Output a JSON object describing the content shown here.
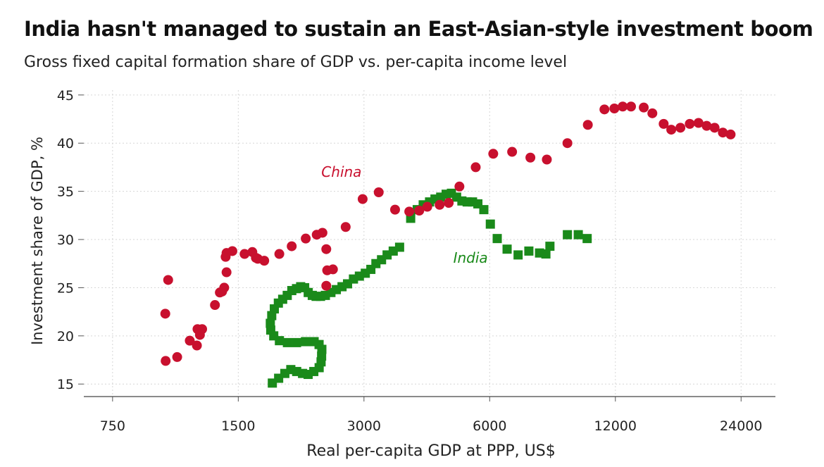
{
  "header": {
    "title": "India hasn't managed to sustain an East-Asian-style investment boom",
    "subtitle": "Gross fixed capital formation share of GDP vs. per-capita income level"
  },
  "chart_data": {
    "type": "scatter",
    "title": "India hasn't managed to sustain an East-Asian-style investment boom",
    "subtitle": "Gross fixed capital formation share of GDP vs. per-capita income level",
    "xlabel": "Real per-capita GDP at PPP, US$",
    "ylabel": "Investment share of GDP, %",
    "x_scale": "log",
    "xlim": [
      640,
      29000
    ],
    "ylim": [
      13.7,
      45.5
    ],
    "x_ticks": [
      750,
      1500,
      3000,
      6000,
      12000,
      24000
    ],
    "x_tick_labels": [
      "750",
      "1500",
      "3000",
      "6000",
      "12000",
      "24000"
    ],
    "y_ticks": [
      15,
      20,
      25,
      30,
      35,
      40,
      45
    ],
    "y_tick_labels": [
      "15",
      "20",
      "25",
      "30",
      "35",
      "40",
      "45"
    ],
    "grid": true,
    "colors": {
      "china": "#c8102e",
      "india": "#1a8a1a"
    },
    "series": [
      {
        "name": "China",
        "marker": "circle",
        "color": "#c8102e",
        "label_position": [
          2650,
          36.5
        ],
        "points": [
          [
            1005,
            17.4
          ],
          [
            1071,
            17.8
          ],
          [
            1019,
            25.8
          ],
          [
            1003,
            22.3
          ],
          [
            1148,
            19.5
          ],
          [
            1194,
            19.0
          ],
          [
            1198,
            20.7
          ],
          [
            1214,
            20.1
          ],
          [
            1229,
            20.7
          ],
          [
            1319,
            23.2
          ],
          [
            1355,
            24.5
          ],
          [
            1388,
            25.0
          ],
          [
            1372,
            24.6
          ],
          [
            1406,
            26.6
          ],
          [
            1399,
            28.2
          ],
          [
            1406,
            28.6
          ],
          [
            1452,
            28.8
          ],
          [
            1553,
            28.5
          ],
          [
            1621,
            28.7
          ],
          [
            1653,
            28.1
          ],
          [
            1670,
            28.0
          ],
          [
            1731,
            27.8
          ],
          [
            1881,
            28.5
          ],
          [
            2014,
            29.3
          ],
          [
            2176,
            30.1
          ],
          [
            2312,
            30.5
          ],
          [
            2386,
            30.7
          ],
          [
            2437,
            29.0
          ],
          [
            2449,
            26.8
          ],
          [
            2528,
            26.9
          ],
          [
            2437,
            25.2
          ],
          [
            2712,
            31.3
          ],
          [
            2978,
            34.2
          ],
          [
            3254,
            34.9
          ],
          [
            3561,
            33.1
          ],
          [
            3851,
            32.9
          ],
          [
            4069,
            33.0
          ],
          [
            4253,
            33.4
          ],
          [
            4553,
            33.6
          ],
          [
            4787,
            33.8
          ],
          [
            5078,
            35.5
          ],
          [
            5555,
            37.5
          ],
          [
            6119,
            38.9
          ],
          [
            6790,
            39.1
          ],
          [
            7510,
            38.5
          ],
          [
            8223,
            38.3
          ],
          [
            9211,
            40.0
          ],
          [
            10308,
            41.9
          ],
          [
            11297,
            43.5
          ],
          [
            11933,
            43.6
          ],
          [
            12495,
            43.8
          ],
          [
            13081,
            43.8
          ],
          [
            14031,
            43.7
          ],
          [
            14714,
            43.1
          ],
          [
            15661,
            42.0
          ],
          [
            16329,
            41.4
          ],
          [
            17176,
            41.6
          ],
          [
            18083,
            42.0
          ],
          [
            18979,
            42.1
          ],
          [
            19850,
            41.8
          ],
          [
            20737,
            41.6
          ],
          [
            21704,
            41.1
          ],
          [
            22655,
            40.9
          ]
        ]
      },
      {
        "name": "India",
        "marker": "square",
        "color": "#1a8a1a",
        "label_position": [
          5400,
          27.6
        ],
        "points": [
          [
            1810,
            15.1
          ],
          [
            1874,
            15.6
          ],
          [
            1939,
            16.1
          ],
          [
            2004,
            16.5
          ],
          [
            2070,
            16.3
          ],
          [
            2138,
            16.1
          ],
          [
            2205,
            16.0
          ],
          [
            2275,
            16.3
          ],
          [
            2343,
            16.7
          ],
          [
            2368,
            17.3
          ],
          [
            2375,
            17.9
          ],
          [
            2378,
            18.6
          ],
          [
            2342,
            19.1
          ],
          [
            2279,
            19.4
          ],
          [
            2173,
            19.4
          ],
          [
            2068,
            19.3
          ],
          [
            1967,
            19.3
          ],
          [
            1882,
            19.5
          ],
          [
            1824,
            20.0
          ],
          [
            1794,
            20.6
          ],
          [
            1790,
            21.3
          ],
          [
            1804,
            22.1
          ],
          [
            1830,
            22.8
          ],
          [
            1871,
            23.4
          ],
          [
            1916,
            23.8
          ],
          [
            1965,
            24.2
          ],
          [
            2015,
            24.7
          ],
          [
            2068,
            24.9
          ],
          [
            2116,
            25.1
          ],
          [
            2163,
            25.0
          ],
          [
            2206,
            24.5
          ],
          [
            2256,
            24.2
          ],
          [
            2304,
            24.1
          ],
          [
            2361,
            24.1
          ],
          [
            2425,
            24.2
          ],
          [
            2500,
            24.5
          ],
          [
            2576,
            24.8
          ],
          [
            2658,
            25.1
          ],
          [
            2740,
            25.4
          ],
          [
            2831,
            25.9
          ],
          [
            2925,
            26.2
          ],
          [
            3022,
            26.5
          ],
          [
            3116,
            26.9
          ],
          [
            3204,
            27.5
          ],
          [
            3305,
            27.9
          ],
          [
            3408,
            28.4
          ],
          [
            3525,
            28.8
          ],
          [
            3651,
            29.2
          ],
          [
            3881,
            32.2
          ],
          [
            4024,
            33.1
          ],
          [
            4159,
            33.6
          ],
          [
            4307,
            33.9
          ],
          [
            4438,
            34.2
          ],
          [
            4580,
            34.4
          ],
          [
            4719,
            34.7
          ],
          [
            4859,
            34.8
          ],
          [
            5000,
            34.4
          ],
          [
            5148,
            34.0
          ],
          [
            5299,
            33.9
          ],
          [
            5459,
            33.9
          ],
          [
            5622,
            33.7
          ],
          [
            5810,
            33.1
          ],
          [
            6022,
            31.6
          ],
          [
            6255,
            30.1
          ],
          [
            6605,
            29.0
          ],
          [
            7018,
            28.4
          ],
          [
            7447,
            28.8
          ],
          [
            7899,
            28.6
          ],
          [
            8180,
            28.5
          ],
          [
            8364,
            29.3
          ],
          [
            9210,
            30.5
          ],
          [
            9780,
            30.5
          ],
          [
            10270,
            30.1
          ]
        ]
      }
    ]
  }
}
